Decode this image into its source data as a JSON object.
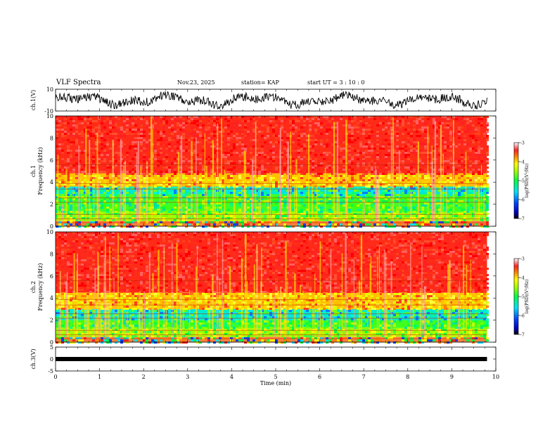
{
  "header": {
    "title": "VLF Spectra",
    "date": "Nov.23, 2025",
    "station": "station= KAP",
    "start": "start  UT  =   3  : 10 : 0"
  },
  "colors": {
    "high": "#ff2020",
    "mid": "#ffff00",
    "low": "#00ff00",
    "lower": "#00e0ff",
    "min": "#000000"
  },
  "chart_data": [
    {
      "type": "line",
      "panel": "ch1-waveform",
      "title": "",
      "ylabel": "ch.1(V)",
      "ylim": [
        -10,
        10
      ],
      "yticks": [
        "10",
        "-10"
      ],
      "xlim": [
        0,
        10
      ],
      "description_values": "noise waveform roughly between -6 and 7 V over 0-9.8 min"
    },
    {
      "type": "heatmap",
      "panel": "ch1-spectrogram",
      "ylabel": "Frequency (kHz)",
      "channel_label": "ch.1",
      "ylim": [
        0,
        10
      ],
      "yticks": [
        "0",
        "2",
        "4",
        "6",
        "8",
        "10"
      ],
      "xlim": [
        0,
        10
      ],
      "data_end_min": 9.8,
      "bands": [
        {
          "from": 0.0,
          "to": 0.5,
          "level": "mixed"
        },
        {
          "from": 0.5,
          "to": 1.3,
          "level": "low"
        },
        {
          "from": 1.3,
          "to": 2.9,
          "level": "green"
        },
        {
          "from": 2.9,
          "to": 3.6,
          "level": "cyan"
        },
        {
          "from": 3.6,
          "to": 4.8,
          "level": "yellow"
        },
        {
          "from": 4.8,
          "to": 10.0,
          "level": "red"
        }
      ],
      "colorbar": {
        "label": "log(PSD)(V²/Hz)",
        "ticks": [
          "-3",
          "-4",
          "-5",
          "-6",
          "-7"
        ],
        "range": [
          -7,
          -3
        ]
      }
    },
    {
      "type": "heatmap",
      "panel": "ch2-spectrogram",
      "ylabel": "Frequency (kHz)",
      "channel_label": "ch.2",
      "ylim": [
        0,
        10
      ],
      "yticks": [
        "0",
        "2",
        "4",
        "6",
        "8",
        "10"
      ],
      "xlim": [
        0,
        10
      ],
      "data_end_min": 9.8,
      "bands": [
        {
          "from": 0.0,
          "to": 0.5,
          "level": "mixed"
        },
        {
          "from": 0.5,
          "to": 1.3,
          "level": "low"
        },
        {
          "from": 1.3,
          "to": 2.0,
          "level": "green"
        },
        {
          "from": 2.0,
          "to": 3.0,
          "level": "cyan"
        },
        {
          "from": 3.0,
          "to": 4.5,
          "level": "yellow"
        },
        {
          "from": 4.5,
          "to": 10.0,
          "level": "red"
        }
      ],
      "colorbar": {
        "label": "log(PSD)(V²/Hz)",
        "ticks": [
          "-3",
          "-4",
          "-5",
          "-6",
          "-7"
        ],
        "range": [
          -7,
          -3
        ]
      }
    },
    {
      "type": "line",
      "panel": "ch3-waveform",
      "ylabel": "ch.3(V)",
      "ylim": [
        -5,
        5
      ],
      "yticks": [
        "5",
        "0",
        "-5"
      ],
      "xlim": [
        0,
        10
      ],
      "level_v": 0,
      "xlabel": "Time  (min)",
      "xticks": [
        "0",
        "1",
        "2",
        "3",
        "4",
        "5",
        "6",
        "7",
        "8",
        "9",
        "10"
      ]
    }
  ]
}
